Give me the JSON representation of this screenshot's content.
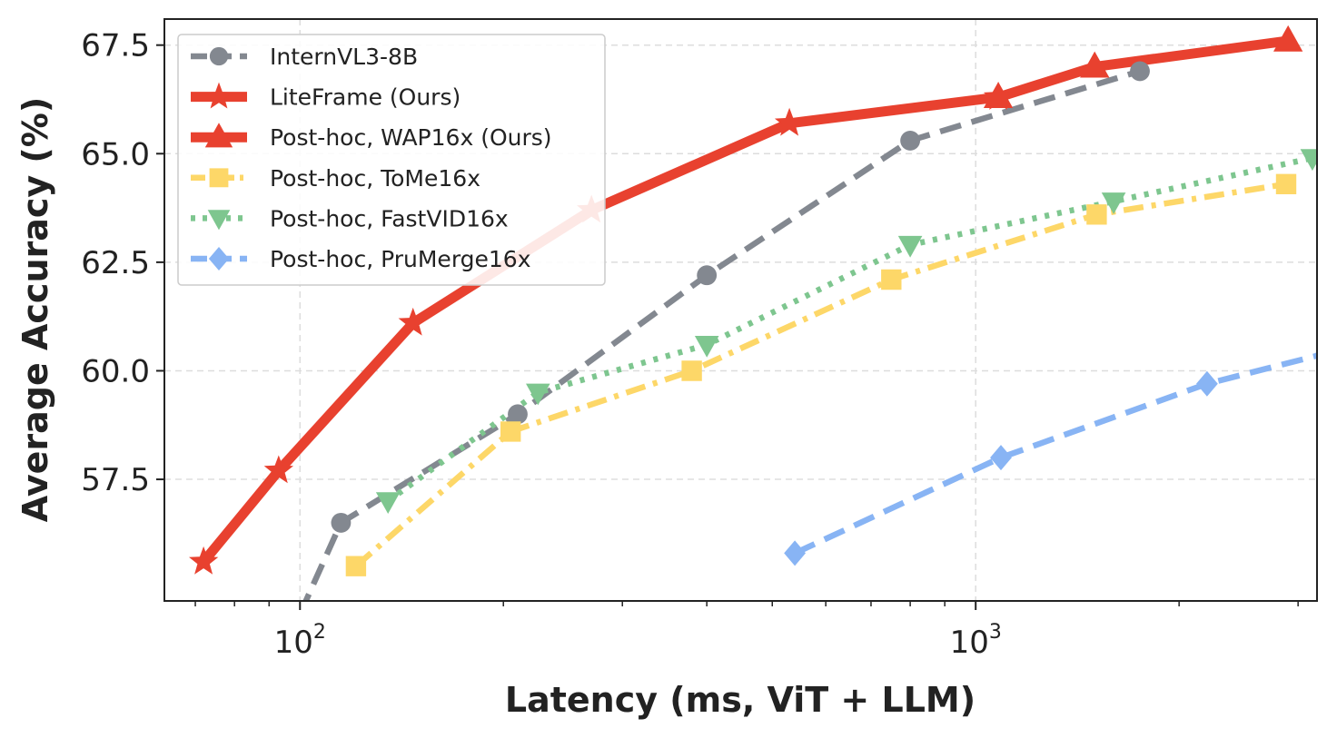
{
  "chart_data": {
    "type": "line",
    "xlabel": "Latency (ms, ViT + LLM)",
    "ylabel": "Average Accuracy (%)",
    "x_scale": "log",
    "xlim": [
      63,
      3200
    ],
    "ylim": [
      54.7,
      68.1
    ],
    "y_ticks": [
      "57.5",
      "60.0",
      "62.5",
      "65.0",
      "67.5"
    ],
    "x_ticks": [
      {
        "base": "10",
        "exp": "2",
        "value": 100
      },
      {
        "base": "10",
        "exp": "3",
        "value": 1000
      }
    ],
    "grid": true,
    "legend_position": "top-left",
    "series": [
      {
        "name": "InternVL3-8B",
        "color": "#838890",
        "dash": "dashed",
        "marker": "circle",
        "x": [
          100,
          115,
          210,
          400,
          800,
          1750
        ],
        "y": [
          54.4,
          56.5,
          59.0,
          62.2,
          65.3,
          66.9
        ]
      },
      {
        "name": "LiteFrame (Ours)",
        "color": "#e8412f",
        "dash": "solid",
        "marker": "star",
        "x": [
          72,
          93,
          147,
          270,
          530,
          1080
        ],
        "y": [
          55.6,
          57.7,
          61.1,
          63.7,
          65.7,
          66.3
        ]
      },
      {
        "name": "Post-hoc, WAP16x (Ours)",
        "color": "#e8412f",
        "dash": "solid",
        "marker": "triangle-up",
        "x": [
          1080,
          1500,
          2900
        ],
        "y": [
          66.3,
          67.0,
          67.6
        ]
      },
      {
        "name": "Post-hoc, ToMe16x",
        "color": "#fdd768",
        "dash": "dashdot",
        "marker": "square",
        "x": [
          121,
          205,
          380,
          750,
          1510,
          2880
        ],
        "y": [
          55.5,
          58.6,
          60.0,
          62.1,
          63.6,
          64.3
        ]
      },
      {
        "name": "Post-hoc, FastVID16x",
        "color": "#7ec68f",
        "dash": "dotted",
        "marker": "triangle-down",
        "x": [
          135,
          225,
          400,
          800,
          1600,
          3150
        ],
        "y": [
          57.0,
          59.5,
          60.6,
          62.9,
          63.9,
          64.9
        ]
      },
      {
        "name": "Post-hoc, PruMerge16x",
        "color": "#88b4f4",
        "dash": "dashed",
        "marker": "diamond",
        "x": [
          540,
          1090,
          2200,
          3300
        ],
        "y": [
          55.8,
          58.0,
          59.7,
          60.4
        ]
      }
    ]
  }
}
